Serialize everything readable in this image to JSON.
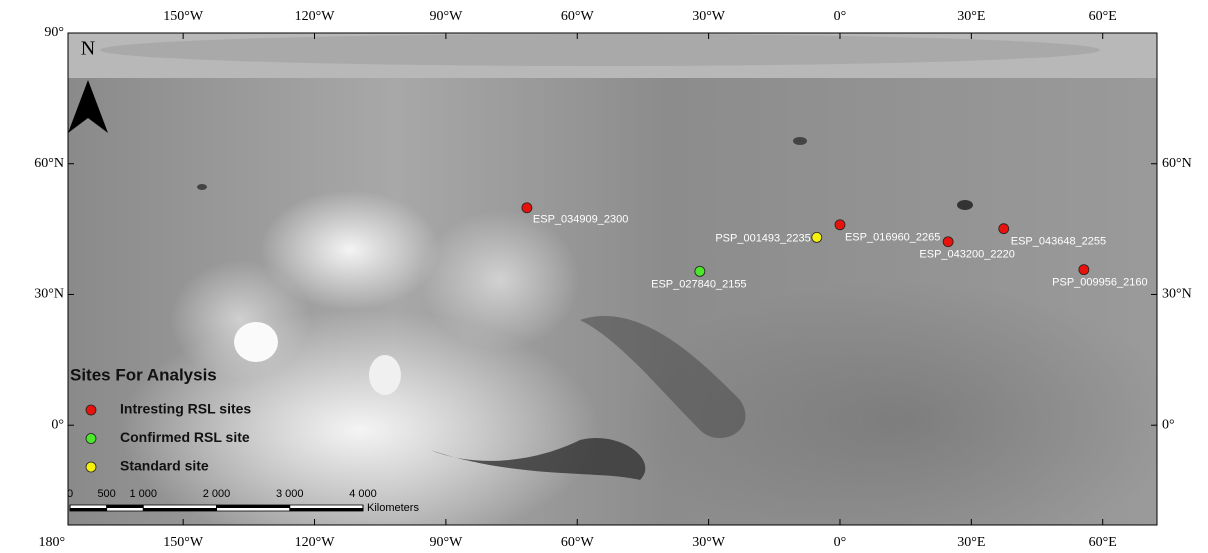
{
  "map": {
    "north_label": "N",
    "extent": {
      "lon": [
        -176.3,
        72.4
      ],
      "lat": [
        -22.9,
        90
      ]
    },
    "lon_ticks": [
      {
        "value": -180,
        "label": "180°"
      },
      {
        "value": -150,
        "label": "150°W"
      },
      {
        "value": -120,
        "label": "120°W"
      },
      {
        "value": -90,
        "label": "90°W"
      },
      {
        "value": -60,
        "label": "60°W"
      },
      {
        "value": -30,
        "label": "30°W"
      },
      {
        "value": 0,
        "label": "0°"
      },
      {
        "value": 30,
        "label": "30°E"
      },
      {
        "value": 60,
        "label": "60°E"
      }
    ],
    "lat_ticks": [
      {
        "value": 90,
        "label": "90°"
      },
      {
        "value": 60,
        "label": "60°N"
      },
      {
        "value": 30,
        "label": "30°N"
      },
      {
        "value": 0,
        "label": "0°"
      }
    ],
    "sites": [
      {
        "name": "ESP_034909_2300",
        "lon": -71.5,
        "lat": 49.9,
        "color": "#e8120c"
      },
      {
        "name": "PSP_001493_2235",
        "lon": -5.3,
        "lat": 43.1,
        "color": "#f5f10a"
      },
      {
        "name": "ESP_016960_2265",
        "lon": 0,
        "lat": 46,
        "color": "#e8120c"
      },
      {
        "name": "ESP_043200_2220",
        "lon": 24.7,
        "lat": 42.1,
        "color": "#e8120c"
      },
      {
        "name": "ESP_043648_2255",
        "lon": 37.4,
        "lat": 45.1,
        "color": "#e8120c"
      },
      {
        "name": "PSP_009956_2160",
        "lon": 55.7,
        "lat": 35.7,
        "color": "#e8120c"
      },
      {
        "name": "ESP_027840_2155",
        "lon": -32,
        "lat": 35.3,
        "color": "#4be82a"
      }
    ],
    "legend": {
      "title": "Sites For Analysis",
      "items": [
        {
          "label": "Intresting RSL sites",
          "color": "#e8120c"
        },
        {
          "label": "Confirmed RSL site",
          "color": "#4be82a"
        },
        {
          "label": "Standard site",
          "color": "#f5f10a"
        }
      ]
    },
    "scale_bar": {
      "unit": "Kilometers",
      "ticks": [
        0,
        500,
        {
          "value": 1000,
          "label": "1 000"
        },
        {
          "value": 2000,
          "label": "2 000"
        },
        {
          "value": 3000,
          "label": "3 000"
        },
        {
          "value": 4000,
          "label": "4 000"
        }
      ]
    }
  }
}
